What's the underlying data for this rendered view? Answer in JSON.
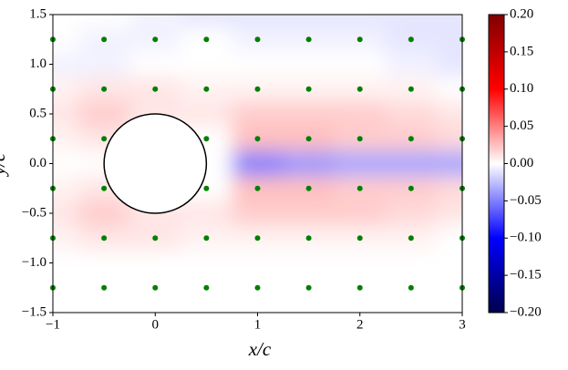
{
  "chart_data": {
    "type": "heatmap",
    "xlabel": "x/c",
    "ylabel": "y/c",
    "xlim": [
      -1,
      3
    ],
    "ylim": [
      -1.5,
      1.5
    ],
    "xticks": [
      {
        "value": -1,
        "label": "−1"
      },
      0,
      1,
      2,
      3
    ],
    "yticks": [
      1.5,
      {
        "value": 1.0,
        "label": "1.0"
      },
      0.5,
      {
        "value": 0.0,
        "label": "0.0"
      },
      {
        "value": -0.5,
        "label": "−0.5"
      },
      {
        "value": -1.0,
        "label": "−1.0"
      },
      {
        "value": -1.5,
        "label": "−1.5"
      }
    ],
    "clim": [
      -0.2,
      0.2
    ],
    "cticks": [
      {
        "value": 0.2,
        "label": "0.20"
      },
      0.15,
      {
        "value": 0.1,
        "label": "0.10"
      },
      0.05,
      {
        "value": 0.0,
        "label": "0.00"
      },
      {
        "value": -0.05,
        "label": "−0.05"
      },
      {
        "value": -0.1,
        "label": "−0.10"
      },
      {
        "value": -0.15,
        "label": "−0.15"
      },
      {
        "value": -0.2,
        "label": "−0.20"
      }
    ],
    "colormap": [
      "#00004c",
      "#0000ff",
      "#ffffff",
      "#ff0000",
      "#800000"
    ],
    "field": {
      "x": [
        -1,
        -0.5,
        0,
        0.5,
        1,
        1.5,
        2,
        2.5,
        3
      ],
      "y": [
        1.5,
        1.25,
        1.0,
        0.75,
        0.5,
        0.25,
        0,
        -0.25,
        -0.5,
        -0.75,
        -1.0,
        -1.25,
        -1.5
      ],
      "z": [
        [
          0,
          0,
          -0.005,
          -0.01,
          -0.01,
          -0.01,
          -0.01,
          -0.01,
          -0.01
        ],
        [
          0,
          -0.005,
          -0.005,
          0,
          -0.005,
          -0.005,
          -0.005,
          -0.01,
          -0.01
        ],
        [
          -0.005,
          -0.005,
          0,
          0,
          0,
          0,
          0,
          -0.005,
          -0.01
        ],
        [
          0.005,
          0.01,
          0.01,
          0.005,
          0.005,
          0.005,
          0.005,
          0.005,
          0
        ],
        [
          0.01,
          0.02,
          0.01,
          0.01,
          0.02,
          0.02,
          0.02,
          0.015,
          0.01
        ],
        [
          0.005,
          0.01,
          0,
          0,
          0.025,
          0.025,
          0.02,
          0.02,
          0.015
        ],
        [
          0,
          0,
          0,
          0,
          -0.05,
          -0.04,
          -0.035,
          -0.035,
          -0.035
        ],
        [
          0.005,
          0.01,
          0,
          0,
          0.025,
          0.025,
          0.02,
          0.02,
          0.015
        ],
        [
          0.01,
          0.02,
          0.01,
          0.01,
          0.02,
          0.02,
          0.02,
          0.015,
          0.01
        ],
        [
          0.005,
          0.01,
          0.01,
          0.005,
          0.005,
          0.005,
          0.005,
          0.005,
          0
        ],
        [
          0,
          0,
          0,
          0,
          0,
          0,
          0,
          0,
          0
        ],
        [
          0,
          0,
          0,
          0,
          0,
          0,
          0,
          0,
          0
        ],
        [
          0,
          0,
          0,
          0,
          0,
          0,
          0,
          0,
          0
        ]
      ]
    },
    "circle": {
      "center": [
        0,
        0
      ],
      "radius": 0.5
    },
    "points": {
      "color": "#008000",
      "x": [
        -1,
        -0.5,
        0,
        0.5,
        1,
        1.5,
        2,
        2.5,
        3,
        -1,
        -0.5,
        0,
        0.5,
        1,
        1.5,
        2,
        2.5,
        3,
        -1,
        -0.5,
        0.5,
        1,
        1.5,
        2,
        2.5,
        3,
        -1,
        -0.5,
        0.5,
        1,
        1.5,
        2,
        2.5,
        3,
        -1,
        -0.5,
        0,
        0.5,
        1,
        1.5,
        2,
        2.5,
        3,
        -1,
        -0.5,
        0,
        0.5,
        1,
        1.5,
        2,
        2.5,
        3
      ],
      "y": [
        1.25,
        1.25,
        1.25,
        1.25,
        1.25,
        1.25,
        1.25,
        1.25,
        1.25,
        0.75,
        0.75,
        0.75,
        0.75,
        0.75,
        0.75,
        0.75,
        0.75,
        0.75,
        0.25,
        0.25,
        0.25,
        0.25,
        0.25,
        0.25,
        0.25,
        0.25,
        -0.25,
        -0.25,
        -0.25,
        -0.25,
        -0.25,
        -0.25,
        -0.25,
        -0.25,
        -0.75,
        -0.75,
        -0.75,
        -0.75,
        -0.75,
        -0.75,
        -0.75,
        -0.75,
        -0.75,
        -1.25,
        -1.25,
        -1.25,
        -1.25,
        -1.25,
        -1.25,
        -1.25,
        -1.25,
        -1.25
      ]
    }
  }
}
